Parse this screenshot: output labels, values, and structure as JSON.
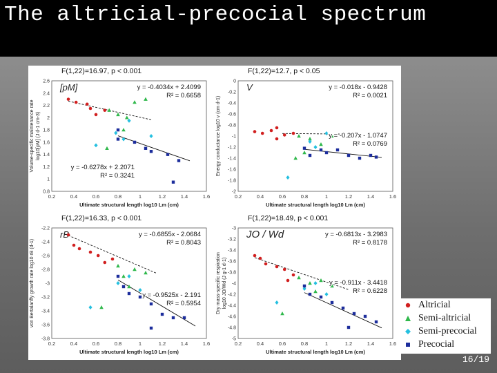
{
  "slide": {
    "title": "The altricial-precocial spectrum",
    "page_number": "16/19"
  },
  "legend": [
    {
      "label": "Altricial",
      "color": "#d11f1f",
      "marker": "circle"
    },
    {
      "label": "Semi-altricial",
      "color": "#2fb84b",
      "marker": "triangle"
    },
    {
      "label": "Semi-precocial",
      "color": "#25c0e0",
      "marker": "diamond"
    },
    {
      "label": "Precocial",
      "color": "#1c2d9c",
      "marker": "square"
    }
  ],
  "chart_data": [
    {
      "type": "scatter",
      "stat": "F(1,22)=16.97, p < 0.001",
      "symbol": "[pM]",
      "ylabel_lines": [
        "Volume-specific maintenance rate",
        "log10[pM] (J d-1 cm-3)"
      ],
      "xlabel": "Ultimate structural length log10 Lm (cm)",
      "xlim": [
        0.2,
        1.6
      ],
      "ylim": [
        0.8,
        2.6
      ],
      "x_ticks": [
        "0.2",
        "0.4",
        "0.6",
        "0.8",
        "1",
        "1.2",
        "1.4",
        "1.6"
      ],
      "y_ticks": [
        "0.8",
        "1",
        "1.2",
        "1.4",
        "1.6",
        "1.8",
        "2",
        "2.2",
        "2.4",
        "2.6"
      ],
      "fits": [
        {
          "equation": "y = -0.4034x + 2.4099",
          "r2": "R² = 0.6658",
          "slope": -0.4034,
          "intercept": 2.4099,
          "x_range": [
            0.35,
            1.1
          ],
          "text_pos": "top-right"
        },
        {
          "equation": "y = -0.6278x + 2.2071",
          "r2": "R² = 0.3241",
          "slope": -0.6278,
          "intercept": 2.2071,
          "x_range": [
            0.8,
            1.45
          ],
          "text_pos": "bottom-center"
        }
      ],
      "series": [
        {
          "name": "Altricial",
          "points": [
            [
              0.35,
              2.3
            ],
            [
              0.42,
              2.25
            ],
            [
              0.52,
              2.22
            ],
            [
              0.55,
              2.15
            ],
            [
              0.6,
              2.05
            ],
            [
              0.68,
              2.12
            ]
          ]
        },
        {
          "name": "Semi-altricial",
          "points": [
            [
              0.72,
              2.12
            ],
            [
              0.8,
              2.05
            ],
            [
              0.88,
              2.0
            ],
            [
              0.95,
              2.25
            ],
            [
              1.05,
              2.3
            ],
            [
              0.85,
              1.8
            ],
            [
              0.7,
              1.5
            ]
          ]
        },
        {
          "name": "Semi-precocial",
          "points": [
            [
              0.6,
              1.55
            ],
            [
              0.78,
              1.75
            ],
            [
              0.85,
              1.65
            ],
            [
              1.1,
              1.7
            ],
            [
              0.9,
              1.95
            ]
          ]
        },
        {
          "name": "Precocial",
          "points": [
            [
              0.8,
              1.8
            ],
            [
              0.8,
              1.65
            ],
            [
              0.95,
              1.6
            ],
            [
              1.05,
              1.5
            ],
            [
              1.1,
              1.45
            ],
            [
              1.25,
              1.4
            ],
            [
              1.35,
              1.3
            ],
            [
              1.3,
              0.95
            ]
          ]
        }
      ]
    },
    {
      "type": "scatter",
      "stat": "F(1,22)=12.7, p < 0.05",
      "symbol": "V",
      "ylabel_lines": [
        "Energy conductance log10 v (cm d-1)"
      ],
      "xlabel": "Ultimate structural length log10 Lm (cm)",
      "xlim": [
        0.2,
        1.6
      ],
      "ylim": [
        -2.0,
        0.0
      ],
      "x_ticks": [
        "0.2",
        "0.4",
        "0.6",
        "0.8",
        "1",
        "1.2",
        "1.4",
        "1.6"
      ],
      "y_ticks": [
        "-2",
        "-1.8",
        "-1.6",
        "-1.4",
        "-1.2",
        "-1",
        "-0.8",
        "-0.6",
        "-0.4",
        "-0.2",
        "0"
      ],
      "fits": [
        {
          "equation": "y = -0.018x - 0.9428",
          "r2": "R² = 0.0021",
          "slope": -0.018,
          "intercept": -0.9428,
          "x_range": [
            0.6,
            1.15
          ],
          "text_pos": "top-right"
        },
        {
          "equation": "y = -0.207x - 1.0747",
          "r2": "R² = 0.0769",
          "slope": -0.207,
          "intercept": -1.0747,
          "x_range": [
            0.8,
            1.5
          ],
          "text_pos": "middle-right"
        }
      ],
      "series": [
        {
          "name": "Altricial",
          "points": [
            [
              0.35,
              -0.92
            ],
            [
              0.42,
              -0.95
            ],
            [
              0.5,
              -0.9
            ],
            [
              0.55,
              -1.05
            ],
            [
              0.62,
              -0.98
            ],
            [
              0.7,
              -0.95
            ],
            [
              0.55,
              -0.85
            ]
          ]
        },
        {
          "name": "Semi-altricial",
          "points": [
            [
              0.75,
              -1.0
            ],
            [
              0.85,
              -1.05
            ],
            [
              0.95,
              -1.15
            ],
            [
              1.05,
              -1.0
            ],
            [
              0.8,
              -1.3
            ],
            [
              0.72,
              -1.4
            ]
          ]
        },
        {
          "name": "Semi-precocial",
          "points": [
            [
              0.65,
              -1.75
            ],
            [
              0.85,
              -1.1
            ],
            [
              0.9,
              -1.2
            ],
            [
              1.0,
              -0.95
            ]
          ]
        },
        {
          "name": "Precocial",
          "points": [
            [
              0.8,
              -1.22
            ],
            [
              0.85,
              -1.35
            ],
            [
              0.95,
              -1.25
            ],
            [
              1.0,
              -1.3
            ],
            [
              1.1,
              -1.25
            ],
            [
              1.2,
              -1.35
            ],
            [
              1.3,
              -1.4
            ],
            [
              1.4,
              -1.35
            ],
            [
              1.45,
              -1.38
            ]
          ]
        }
      ]
    },
    {
      "type": "scatter",
      "stat": "F(1,22)=16.33, p < 0.001",
      "symbol": "rB",
      "ylabel_lines": [
        "von Bertalanffy growth rate log10 rB (d-1)"
      ],
      "xlabel": "Ultimate structural length log10 Lm (cm)",
      "xlim": [
        0.2,
        1.6
      ],
      "ylim": [
        -3.8,
        -2.2
      ],
      "x_ticks": [
        "0.2",
        "0.4",
        "0.6",
        "0.8",
        "1",
        "1.2",
        "1.4",
        "1.6"
      ],
      "y_ticks": [
        "-3.8",
        "-3.6",
        "-3.4",
        "-3.2",
        "-3",
        "-2.8",
        "-2.6",
        "-2.4",
        "-2.2"
      ],
      "fits": [
        {
          "equation": "y = -0.6855x - 2.0684",
          "r2": "R² = 0.8043",
          "slope": -0.6855,
          "intercept": -2.0684,
          "x_range": [
            0.35,
            1.15
          ],
          "text_pos": "top-right"
        },
        {
          "equation": "y = -0.9525x - 2.191",
          "r2": "R² = 0.5954",
          "slope": -0.9525,
          "intercept": -2.191,
          "x_range": [
            0.8,
            1.5
          ],
          "text_pos": "bottom-right"
        }
      ],
      "series": [
        {
          "name": "Altricial",
          "points": [
            [
              0.35,
              -2.3
            ],
            [
              0.4,
              -2.45
            ],
            [
              0.45,
              -2.5
            ],
            [
              0.55,
              -2.55
            ],
            [
              0.62,
              -2.6
            ],
            [
              0.68,
              -2.7
            ],
            [
              0.75,
              -2.65
            ]
          ]
        },
        {
          "name": "Semi-altricial",
          "points": [
            [
              0.8,
              -2.75
            ],
            [
              0.85,
              -2.9
            ],
            [
              0.95,
              -2.8
            ],
            [
              1.05,
              -2.85
            ],
            [
              0.9,
              -3.05
            ],
            [
              0.65,
              -3.35
            ]
          ]
        },
        {
          "name": "Semi-precocial",
          "points": [
            [
              0.55,
              -3.35
            ],
            [
              0.8,
              -3.0
            ],
            [
              0.9,
              -2.9
            ],
            [
              1.0,
              -3.1
            ]
          ]
        },
        {
          "name": "Precocial",
          "points": [
            [
              0.8,
              -2.9
            ],
            [
              0.85,
              -3.05
            ],
            [
              0.9,
              -3.15
            ],
            [
              1.0,
              -3.2
            ],
            [
              1.1,
              -3.3
            ],
            [
              1.2,
              -3.45
            ],
            [
              1.3,
              -3.5
            ],
            [
              1.4,
              -3.5
            ],
            [
              1.1,
              -3.65
            ]
          ]
        }
      ]
    },
    {
      "type": "scatter",
      "stat": "F(1,22)=18.49, p < 0.001",
      "symbol": "JO / Wd",
      "ylabel_lines": [
        "Dry mass-specific respiration",
        "log10 JO/Wd (J g-1 d-1)"
      ],
      "xlabel": "Ultimate structural length log10 Lm (cm)",
      "xlim": [
        0.2,
        1.6
      ],
      "ylim": [
        -5.0,
        -3.0
      ],
      "x_ticks": [
        "0.2",
        "0.4",
        "0.6",
        "0.8",
        "1",
        "1.2",
        "1.4",
        "1.6"
      ],
      "y_ticks": [
        "-5",
        "-4.8",
        "-4.6",
        "-4.4",
        "-4.2",
        "-4",
        "-3.8",
        "-3.6",
        "-3.4",
        "-3.2",
        "-3"
      ],
      "fits": [
        {
          "equation": "y = -0.6813x - 3.2983",
          "r2": "R² = 0.8178",
          "slope": -0.6813,
          "intercept": -3.2983,
          "x_range": [
            0.35,
            1.2
          ],
          "text_pos": "top-right"
        },
        {
          "equation": "y = -0.911x - 3.4418",
          "r2": "R² = 0.6228",
          "slope": -0.911,
          "intercept": -3.4418,
          "x_range": [
            0.8,
            1.5
          ],
          "text_pos": "middle-right"
        }
      ],
      "series": [
        {
          "name": "Altricial",
          "points": [
            [
              0.35,
              -3.5
            ],
            [
              0.4,
              -3.55
            ],
            [
              0.45,
              -3.65
            ],
            [
              0.55,
              -3.7
            ],
            [
              0.62,
              -3.75
            ],
            [
              0.7,
              -3.85
            ],
            [
              0.65,
              -3.95
            ]
          ]
        },
        {
          "name": "Semi-altricial",
          "points": [
            [
              0.75,
              -3.9
            ],
            [
              0.85,
              -4.0
            ],
            [
              0.95,
              -3.95
            ],
            [
              1.05,
              -4.05
            ],
            [
              0.9,
              -4.15
            ],
            [
              0.6,
              -4.55
            ]
          ]
        },
        {
          "name": "Semi-precocial",
          "points": [
            [
              0.55,
              -4.35
            ],
            [
              0.8,
              -4.1
            ],
            [
              0.9,
              -4.0
            ],
            [
              1.0,
              -4.2
            ]
          ]
        },
        {
          "name": "Precocial",
          "points": [
            [
              0.8,
              -4.05
            ],
            [
              0.85,
              -4.2
            ],
            [
              0.95,
              -4.25
            ],
            [
              1.05,
              -4.35
            ],
            [
              1.15,
              -4.45
            ],
            [
              1.25,
              -4.55
            ],
            [
              1.35,
              -4.6
            ],
            [
              1.45,
              -4.7
            ],
            [
              1.2,
              -4.8
            ]
          ]
        }
      ]
    }
  ]
}
